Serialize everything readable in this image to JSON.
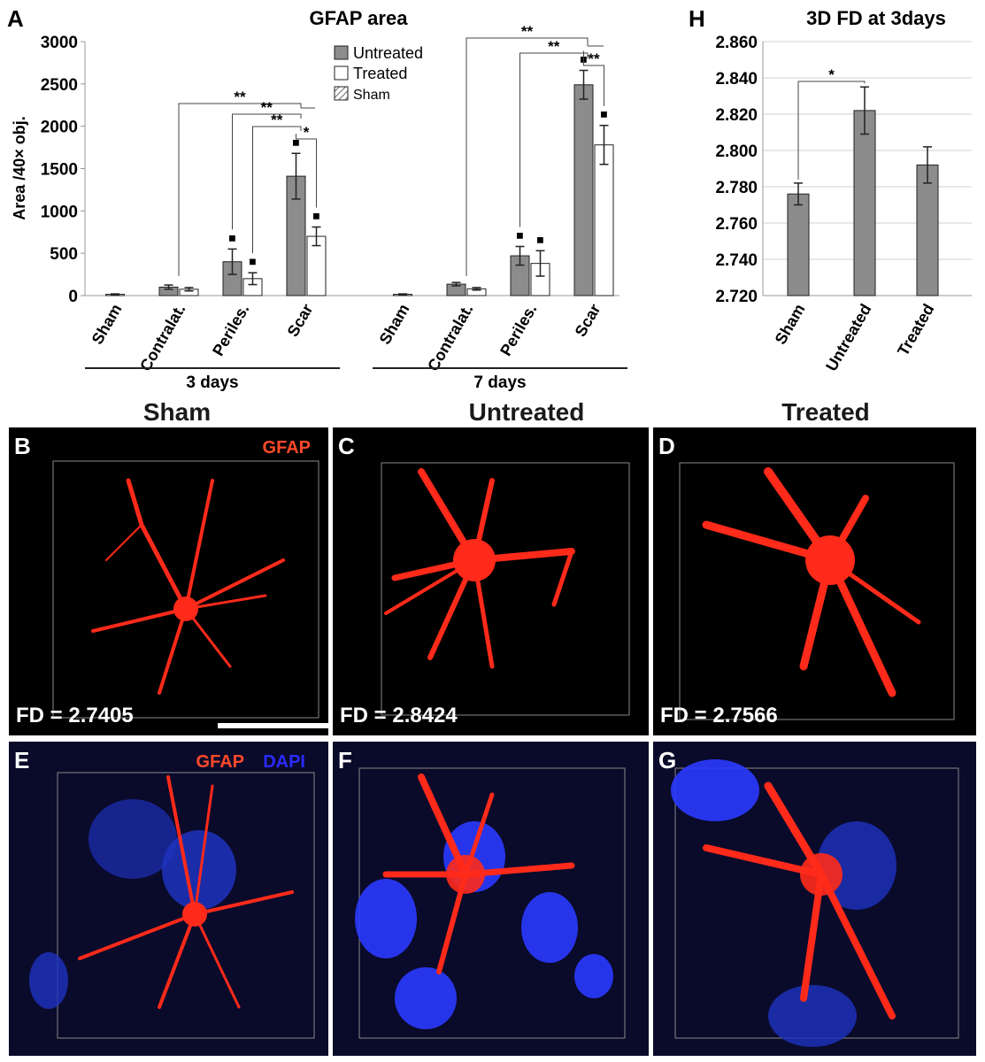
{
  "chart_data": [
    {
      "panel": "A",
      "type": "bar",
      "title": "GFAP area",
      "ylabel": "Area /40× obj.",
      "ylim": [
        0,
        3000
      ],
      "yticks": [
        "0",
        "500",
        "1000",
        "1500",
        "2000",
        "2500",
        "3000"
      ],
      "groups": [
        {
          "label": "3 days",
          "categories": [
            "Sham",
            "Contralat.",
            "Periles.",
            "Scar"
          ],
          "series": [
            {
              "name": "Untreated",
              "values": [
                null,
                100,
                400,
                1410
              ],
              "errors": [
                null,
                25,
                150,
                270
              ]
            },
            {
              "name": "Treated",
              "values": [
                null,
                75,
                200,
                700
              ],
              "errors": [
                null,
                20,
                70,
                110
              ]
            },
            {
              "name": "Sham",
              "values": [
                15,
                null,
                null,
                null
              ],
              "errors": [
                5,
                null,
                null,
                null
              ]
            }
          ]
        },
        {
          "label": "7 days",
          "categories": [
            "Sham",
            "Contralat.",
            "Periles.",
            "Scar"
          ],
          "series": [
            {
              "name": "Untreated",
              "values": [
                null,
                135,
                470,
                2490
              ],
              "errors": [
                null,
                20,
                110,
                170
              ]
            },
            {
              "name": "Treated",
              "values": [
                null,
                80,
                380,
                1780
              ],
              "errors": [
                null,
                15,
                150,
                230
              ]
            },
            {
              "name": "Sham",
              "values": [
                15,
                null,
                null,
                null
              ],
              "errors": [
                5,
                null,
                null,
                null
              ]
            }
          ]
        }
      ],
      "legend": [
        "Untreated",
        "Treated",
        "Sham"
      ],
      "significance": [
        "**",
        "**",
        "**",
        "*",
        "**",
        "**",
        "**"
      ],
      "marker_symbol": "■"
    },
    {
      "panel": "H",
      "type": "bar",
      "title": "3D FD at 3days",
      "ylim": [
        2.72,
        2.86
      ],
      "yticks": [
        "2.720",
        "2.740",
        "2.760",
        "2.780",
        "2.800",
        "2.820",
        "2.840",
        "2.860"
      ],
      "categories": [
        "Sham",
        "Untreated",
        "Treated"
      ],
      "values": [
        2.776,
        2.822,
        2.792
      ],
      "errors": [
        0.006,
        0.013,
        0.01
      ],
      "significance": [
        "*"
      ]
    }
  ],
  "columns": [
    "Sham",
    "Untreated",
    "Treated"
  ],
  "images": [
    {
      "letter": "B",
      "stain": "GFAP",
      "fd": "FD = 2.7405"
    },
    {
      "letter": "C",
      "fd": "FD = 2.8424"
    },
    {
      "letter": "D",
      "fd": "FD = 2.7566"
    },
    {
      "letter": "E",
      "stain_gfap": "GFAP",
      "stain_dapi": "DAPI"
    },
    {
      "letter": "F"
    },
    {
      "letter": "G"
    }
  ],
  "colors": {
    "untreated": "#8c8c8c",
    "treated": "#ffffff",
    "gfap": "#ff2a1a",
    "dapi": "#1e3cff",
    "label_gfap": "#ff4a2a",
    "label_dapi": "#2a2aff"
  }
}
